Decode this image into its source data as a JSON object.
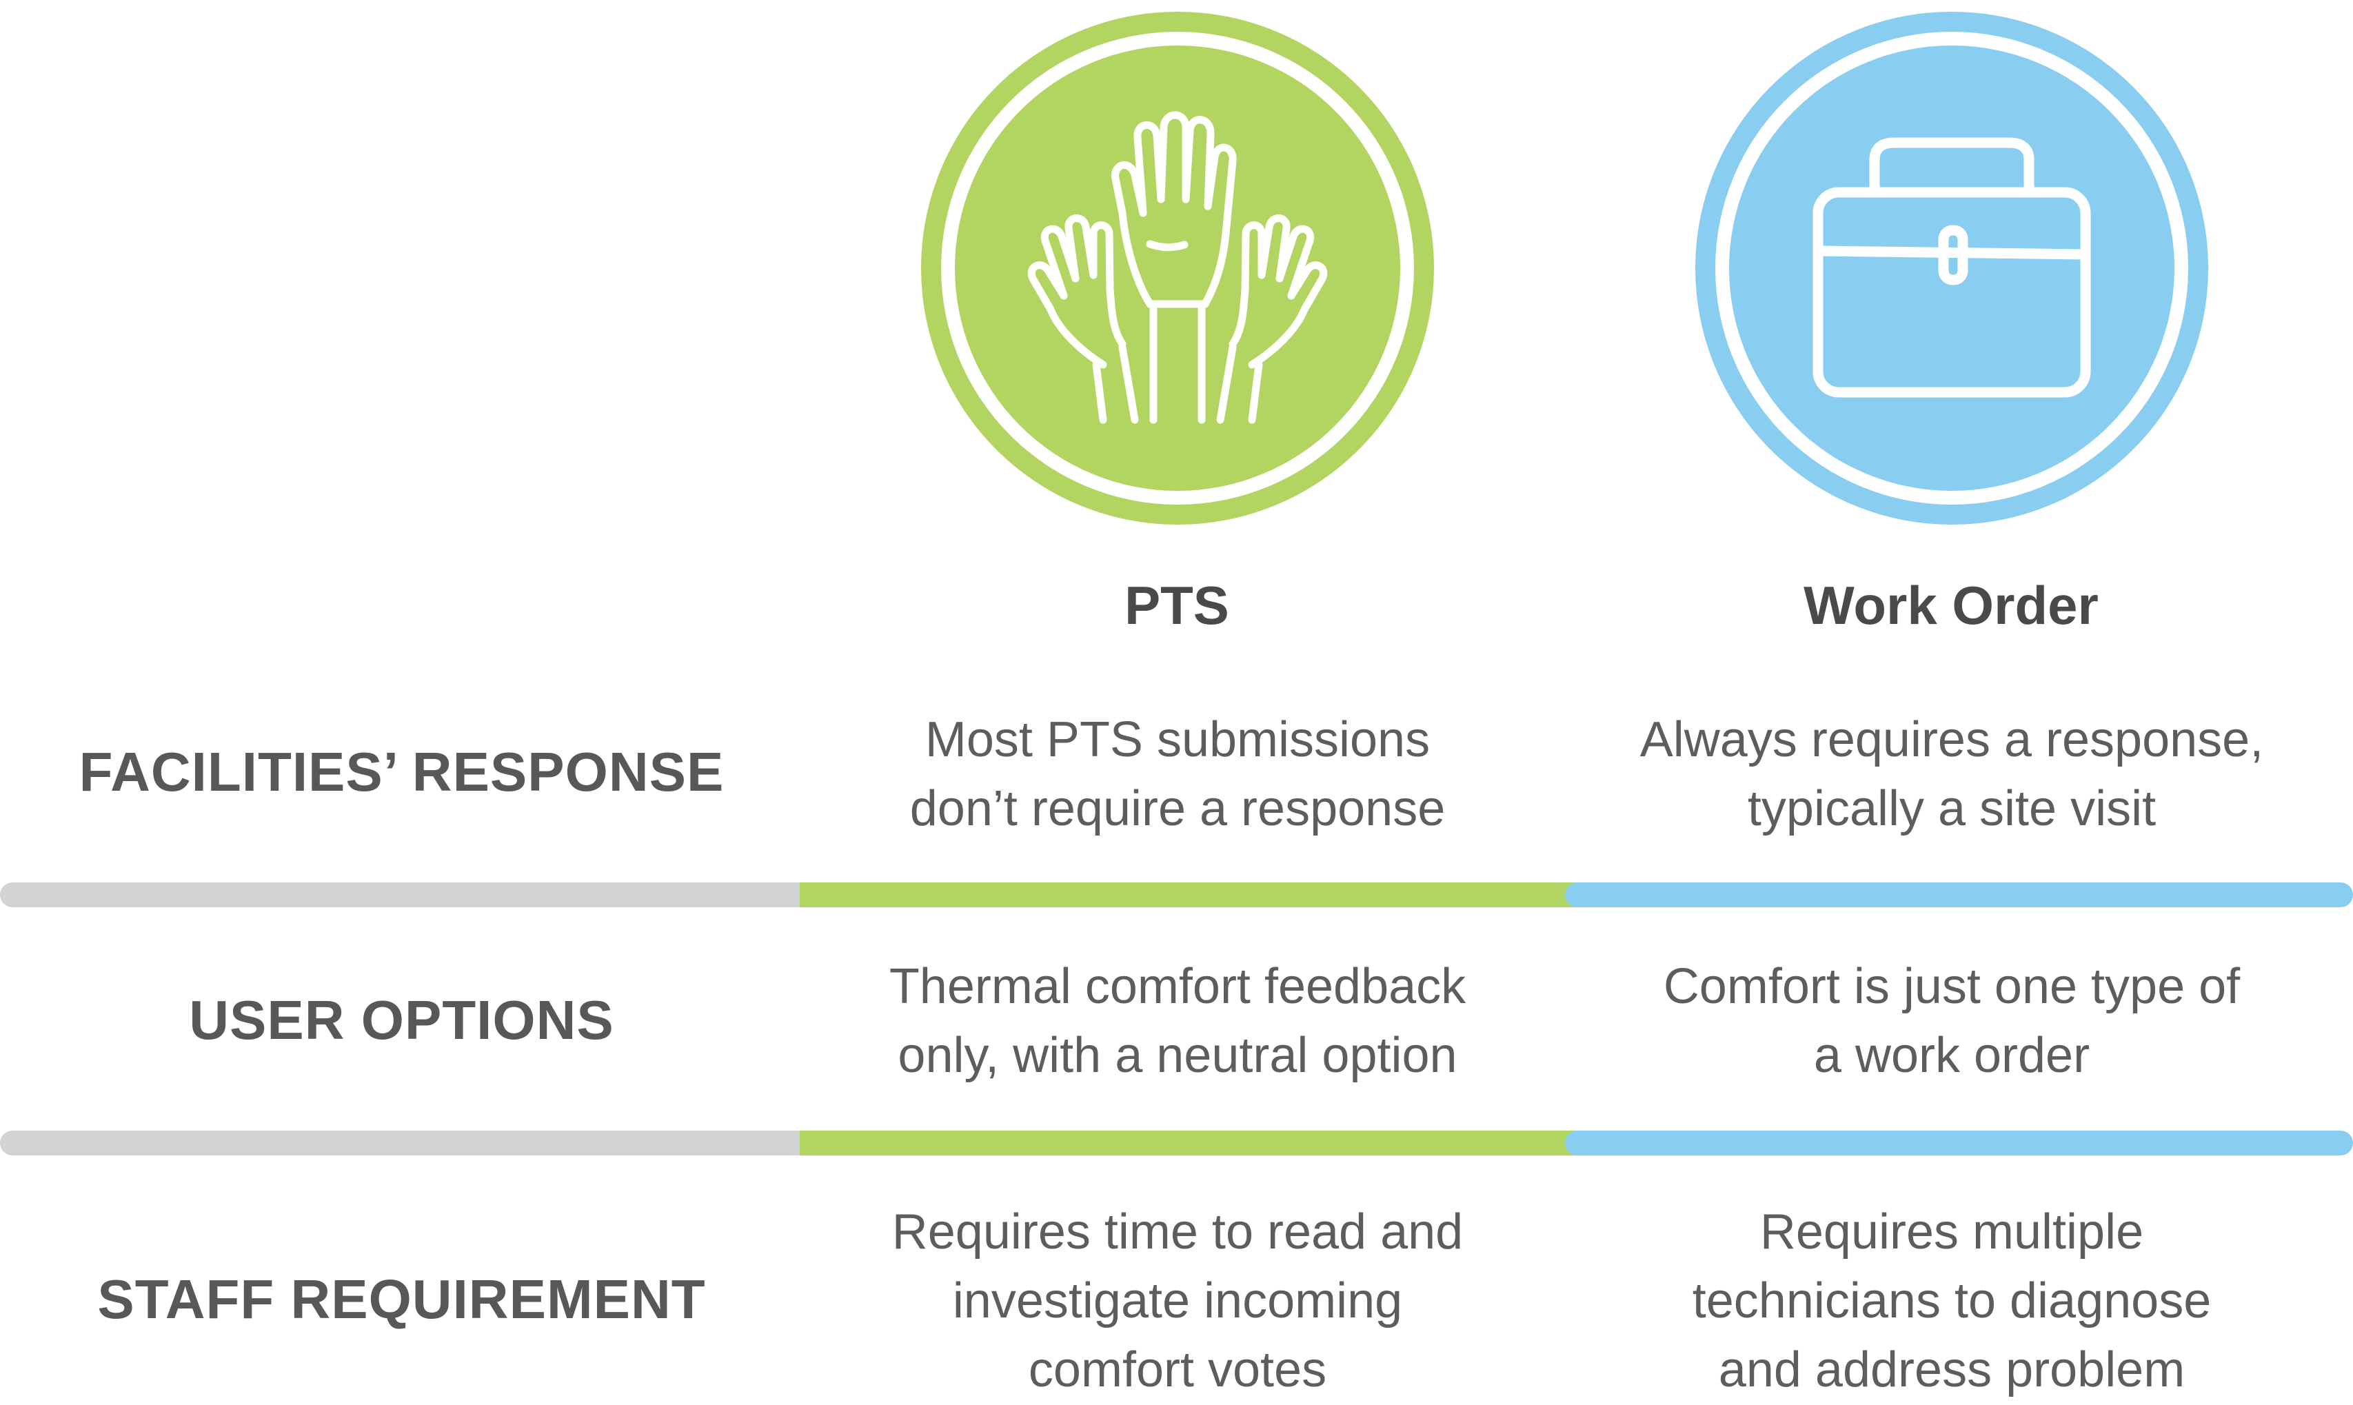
{
  "columns": {
    "pts": {
      "title": "PTS",
      "icon": "raised-hands-icon",
      "color": "#b2d562"
    },
    "work_order": {
      "title": "Work Order",
      "icon": "toolbox-icon",
      "color": "#89cdf1"
    }
  },
  "divider_colors": {
    "label": "#d1d3d4",
    "pts": "#b2d562",
    "work_order": "#89cdf1"
  },
  "rows": [
    {
      "label": "FACILITIES’ RESPONSE",
      "pts_lines": [
        "Most PTS submissions",
        "don’t require a response"
      ],
      "wo_lines": [
        "Always requires a response,",
        "typically a site visit"
      ]
    },
    {
      "label": "USER OPTIONS",
      "pts_lines": [
        "Thermal comfort feedback",
        "only, with a neutral option"
      ],
      "wo_lines": [
        "Comfort is just one type of",
        "a work order"
      ]
    },
    {
      "label": "STAFF REQUIREMENT",
      "pts_lines": [
        "Requires time to read and",
        "investigate incoming",
        "comfort votes"
      ],
      "wo_lines": [
        "Requires multiple",
        "technicians to  diagnose",
        "and address problem"
      ]
    }
  ]
}
